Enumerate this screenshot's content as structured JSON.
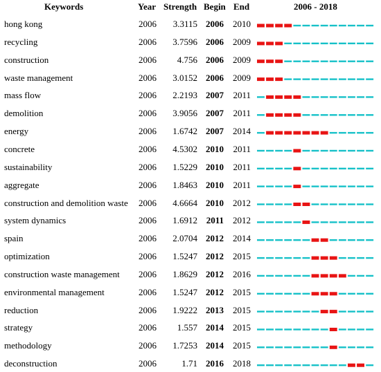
{
  "headers": {
    "keywords": "Keywords",
    "year": "Year",
    "strength": "Strength",
    "begin": "Begin",
    "end": "End",
    "range": "2006 - 2018"
  },
  "colors": {
    "burst": "#e81414",
    "baseline": "#16c1c8"
  },
  "chart_data": {
    "type": "table",
    "timeline_start": 2006,
    "timeline_end": 2018,
    "rows": [
      {
        "keyword": "hong kong",
        "year": "2006",
        "strength": "3.3115",
        "begin": "2006",
        "end": "2010"
      },
      {
        "keyword": "recycling",
        "year": "2006",
        "strength": "3.7596",
        "begin": "2006",
        "end": "2009"
      },
      {
        "keyword": "construction",
        "year": "2006",
        "strength": "4.756",
        "begin": "2006",
        "end": "2009"
      },
      {
        "keyword": "waste management",
        "year": "2006",
        "strength": "3.0152",
        "begin": "2006",
        "end": "2009"
      },
      {
        "keyword": "mass flow",
        "year": "2006",
        "strength": "2.2193",
        "begin": "2007",
        "end": "2011"
      },
      {
        "keyword": "demolition",
        "year": "2006",
        "strength": "3.9056",
        "begin": "2007",
        "end": "2011"
      },
      {
        "keyword": "energy",
        "year": "2006",
        "strength": "1.6742",
        "begin": "2007",
        "end": "2014"
      },
      {
        "keyword": "concrete",
        "year": "2006",
        "strength": "4.5302",
        "begin": "2010",
        "end": "2011"
      },
      {
        "keyword": "sustainability",
        "year": "2006",
        "strength": "1.5229",
        "begin": "2010",
        "end": "2011"
      },
      {
        "keyword": "aggregate",
        "year": "2006",
        "strength": "1.8463",
        "begin": "2010",
        "end": "2011"
      },
      {
        "keyword": "construction and demolition waste",
        "year": "2006",
        "strength": "4.6664",
        "begin": "2010",
        "end": "2012"
      },
      {
        "keyword": "system dynamics",
        "year": "2006",
        "strength": "1.6912",
        "begin": "2011",
        "end": "2012"
      },
      {
        "keyword": "spain",
        "year": "2006",
        "strength": "2.0704",
        "begin": "2012",
        "end": "2014"
      },
      {
        "keyword": "optimization",
        "year": "2006",
        "strength": "1.5247",
        "begin": "2012",
        "end": "2015"
      },
      {
        "keyword": "construction waste management",
        "year": "2006",
        "strength": "1.8629",
        "begin": "2012",
        "end": "2016"
      },
      {
        "keyword": "environmental management",
        "year": "2006",
        "strength": "1.5247",
        "begin": "2012",
        "end": "2015"
      },
      {
        "keyword": "reduction",
        "year": "2006",
        "strength": "1.9222",
        "begin": "2013",
        "end": "2015"
      },
      {
        "keyword": "strategy",
        "year": "2006",
        "strength": "1.557",
        "begin": "2014",
        "end": "2015"
      },
      {
        "keyword": "methodology",
        "year": "2006",
        "strength": "1.7253",
        "begin": "2014",
        "end": "2015"
      },
      {
        "keyword": "deconstruction",
        "year": "2006",
        "strength": "1.71",
        "begin": "2016",
        "end": "2018"
      }
    ]
  }
}
